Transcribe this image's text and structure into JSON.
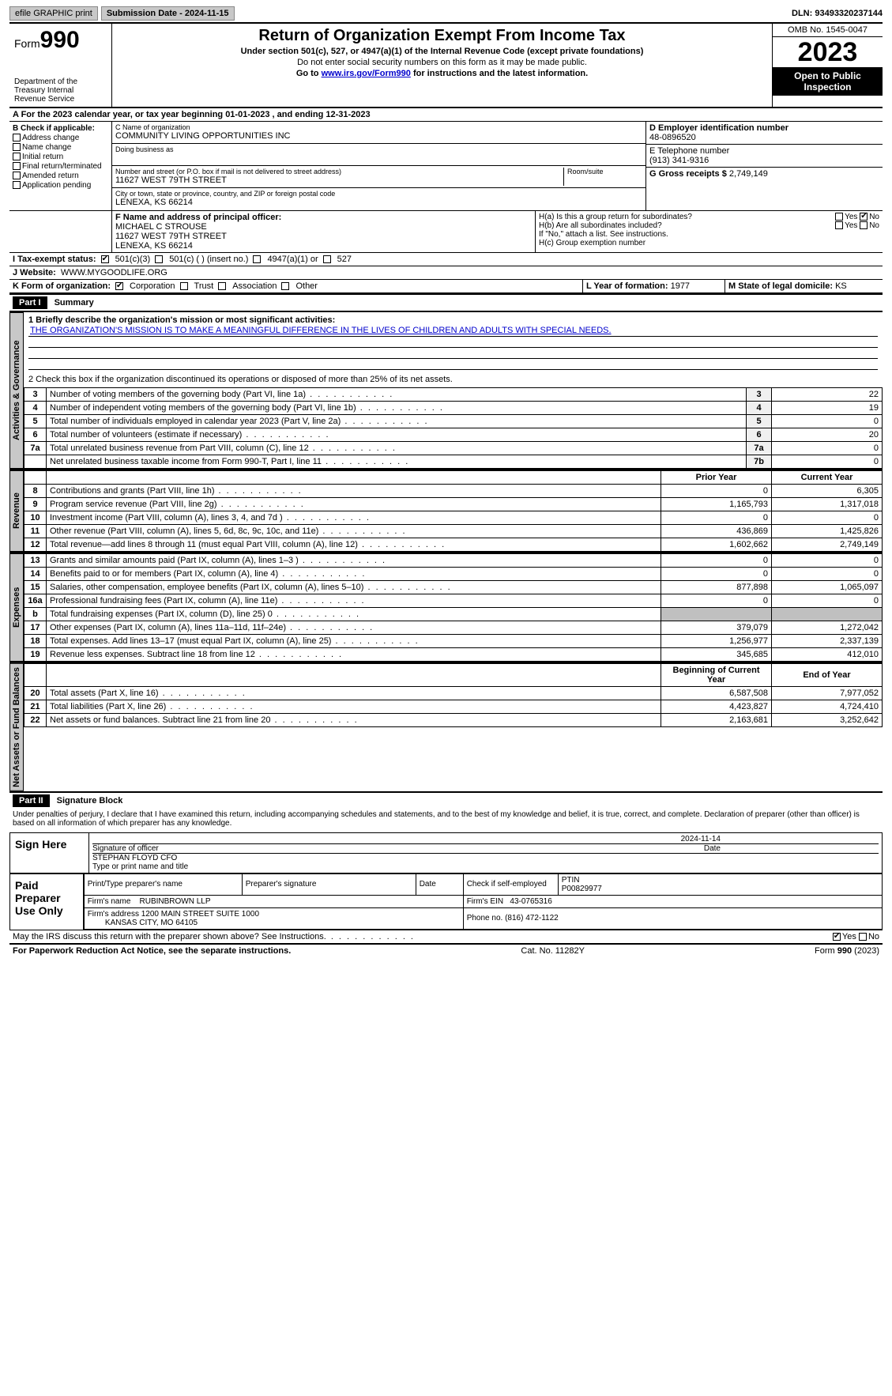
{
  "topbar": {
    "efile": "efile GRAPHIC print",
    "subdate_label": "Submission Date - 2024-11-15",
    "dln": "DLN: 93493320237144"
  },
  "header": {
    "form_prefix": "Form",
    "form_num": "990",
    "dept": "Department of the Treasury Internal Revenue Service",
    "title": "Return of Organization Exempt From Income Tax",
    "sub1": "Under section 501(c), 527, or 4947(a)(1) of the Internal Revenue Code (except private foundations)",
    "sub2": "Do not enter social security numbers on this form as it may be made public.",
    "sub3_pre": "Go to ",
    "sub3_link": "www.irs.gov/Form990",
    "sub3_post": " for instructions and the latest information.",
    "omb": "OMB No. 1545-0047",
    "year": "2023",
    "otp": "Open to Public Inspection"
  },
  "period": {
    "text": "A For the 2023 calendar year, or tax year beginning 01-01-2023   , and ending 12-31-2023"
  },
  "boxB": {
    "title": "B Check if applicable:",
    "items": [
      "Address change",
      "Name change",
      "Initial return",
      "Final return/terminated",
      "Amended return",
      "Application pending"
    ]
  },
  "boxC": {
    "name_label": "C Name of organization",
    "name": "COMMUNITY LIVING OPPORTUNITIES INC",
    "dba_label": "Doing business as",
    "dba": "",
    "street_label": "Number and street (or P.O. box if mail is not delivered to street address)",
    "street": "11627 WEST 79TH STREET",
    "room_label": "Room/suite",
    "city_label": "City or town, state or province, country, and ZIP or foreign postal code",
    "city": "LENEXA, KS  66214"
  },
  "boxD": {
    "label": "D Employer identification number",
    "value": "48-0896520"
  },
  "boxE": {
    "label": "E Telephone number",
    "value": "(913) 341-9316"
  },
  "boxG": {
    "label": "G Gross receipts $",
    "value": "2,749,149"
  },
  "boxF": {
    "label": "F  Name and address of principal officer:",
    "name": "MICHAEL C STROUSE",
    "addr1": "11627 WEST 79TH STREET",
    "addr2": "LENEXA, KS  66214"
  },
  "boxH": {
    "a": "H(a)  Is this a group return for subordinates?",
    "a_yes": "Yes",
    "a_no": "No",
    "b": "H(b)  Are all subordinates included?",
    "b_note": "If \"No,\" attach a list. See instructions.",
    "c": "H(c)  Group exemption number"
  },
  "boxI": {
    "label": "I  Tax-exempt status:",
    "opt1": "501(c)(3)",
    "opt2": "501(c) (   ) (insert no.)",
    "opt3": "4947(a)(1) or",
    "opt4": "527"
  },
  "boxJ": {
    "label": "J  Website:",
    "value": "WWW.MYGOODLIFE.ORG"
  },
  "boxK": {
    "label": "K Form of organization:",
    "opts": [
      "Corporation",
      "Trust",
      "Association",
      "Other"
    ]
  },
  "boxL": {
    "label": "L Year of formation:",
    "value": "1977"
  },
  "boxM": {
    "label": "M State of legal domicile:",
    "value": "KS"
  },
  "part1": {
    "hdr": "Part I",
    "title": "Summary",
    "line1_label": "1  Briefly describe the organization's mission or most significant activities:",
    "mission": "THE ORGANIZATION'S MISSION IS TO MAKE A MEANINGFUL DIFFERENCE IN THE LIVES OF CHILDREN AND ADULTS WITH SPECIAL NEEDS.",
    "line2": "2   Check this box      if the organization discontinued its operations or disposed of more than 25% of its net assets.",
    "governance_tab": "Activities & Governance",
    "revenue_tab": "Revenue",
    "expenses_tab": "Expenses",
    "netassets_tab": "Net Assets or Fund Balances",
    "rows_gov": [
      {
        "n": "3",
        "lbl": "Number of voting members of the governing body (Part VI, line 1a)",
        "k": "3",
        "v": "22"
      },
      {
        "n": "4",
        "lbl": "Number of independent voting members of the governing body (Part VI, line 1b)",
        "k": "4",
        "v": "19"
      },
      {
        "n": "5",
        "lbl": "Total number of individuals employed in calendar year 2023 (Part V, line 2a)",
        "k": "5",
        "v": "0"
      },
      {
        "n": "6",
        "lbl": "Total number of volunteers (estimate if necessary)",
        "k": "6",
        "v": "20"
      },
      {
        "n": "7a",
        "lbl": "Total unrelated business revenue from Part VIII, column (C), line 12",
        "k": "7a",
        "v": "0"
      },
      {
        "n": "",
        "lbl": "Net unrelated business taxable income from Form 990-T, Part I, line 11",
        "k": "7b",
        "v": "0"
      }
    ],
    "col_prior": "Prior Year",
    "col_current": "Current Year",
    "rows_rev": [
      {
        "n": "8",
        "lbl": "Contributions and grants (Part VIII, line 1h)",
        "p": "0",
        "c": "6,305"
      },
      {
        "n": "9",
        "lbl": "Program service revenue (Part VIII, line 2g)",
        "p": "1,165,793",
        "c": "1,317,018"
      },
      {
        "n": "10",
        "lbl": "Investment income (Part VIII, column (A), lines 3, 4, and 7d )",
        "p": "0",
        "c": "0"
      },
      {
        "n": "11",
        "lbl": "Other revenue (Part VIII, column (A), lines 5, 6d, 8c, 9c, 10c, and 11e)",
        "p": "436,869",
        "c": "1,425,826"
      },
      {
        "n": "12",
        "lbl": "Total revenue—add lines 8 through 11 (must equal Part VIII, column (A), line 12)",
        "p": "1,602,662",
        "c": "2,749,149"
      }
    ],
    "rows_exp": [
      {
        "n": "13",
        "lbl": "Grants and similar amounts paid (Part IX, column (A), lines 1–3 )",
        "p": "0",
        "c": "0"
      },
      {
        "n": "14",
        "lbl": "Benefits paid to or for members (Part IX, column (A), line 4)",
        "p": "0",
        "c": "0"
      },
      {
        "n": "15",
        "lbl": "Salaries, other compensation, employee benefits (Part IX, column (A), lines 5–10)",
        "p": "877,898",
        "c": "1,065,097"
      },
      {
        "n": "16a",
        "lbl": "Professional fundraising fees (Part IX, column (A), line 11e)",
        "p": "0",
        "c": "0"
      },
      {
        "n": "b",
        "lbl": "Total fundraising expenses (Part IX, column (D), line 25) 0",
        "p": "",
        "c": "",
        "shade": true
      },
      {
        "n": "17",
        "lbl": "Other expenses (Part IX, column (A), lines 11a–11d, 11f–24e)",
        "p": "379,079",
        "c": "1,272,042"
      },
      {
        "n": "18",
        "lbl": "Total expenses. Add lines 13–17 (must equal Part IX, column (A), line 25)",
        "p": "1,256,977",
        "c": "2,337,139"
      },
      {
        "n": "19",
        "lbl": "Revenue less expenses. Subtract line 18 from line 12",
        "p": "345,685",
        "c": "412,010"
      }
    ],
    "col_begin": "Beginning of Current Year",
    "col_end": "End of Year",
    "rows_net": [
      {
        "n": "20",
        "lbl": "Total assets (Part X, line 16)",
        "p": "6,587,508",
        "c": "7,977,052"
      },
      {
        "n": "21",
        "lbl": "Total liabilities (Part X, line 26)",
        "p": "4,423,827",
        "c": "4,724,410"
      },
      {
        "n": "22",
        "lbl": "Net assets or fund balances. Subtract line 21 from line 20",
        "p": "2,163,681",
        "c": "3,252,642"
      }
    ]
  },
  "part2": {
    "hdr": "Part II",
    "title": "Signature Block",
    "decl": "Under penalties of perjury, I declare that I have examined this return, including accompanying schedules and statements, and to the best of my knowledge and belief, it is true, correct, and complete. Declaration of preparer (other than officer) is based on all information of which preparer has any knowledge.",
    "sign_here": "Sign Here",
    "sig_date": "2024-11-14",
    "sig_label": "Signature of officer",
    "officer": "STEPHAN FLOYD CFO",
    "type_label": "Type or print name and title",
    "date_label": "Date",
    "paid": "Paid Preparer Use Only",
    "prep_name_label": "Print/Type preparer's name",
    "prep_sig_label": "Preparer's signature",
    "prep_date_label": "Date",
    "prep_self": "Check        if self-employed",
    "ptin_label": "PTIN",
    "ptin": "P00829977",
    "firm_name_label": "Firm's name",
    "firm_name": "RUBINBROWN LLP",
    "firm_ein_label": "Firm's EIN",
    "firm_ein": "43-0765316",
    "firm_addr_label": "Firm's address",
    "firm_addr1": "1200 MAIN STREET SUITE 1000",
    "firm_addr2": "KANSAS CITY, MO  64105",
    "phone_label": "Phone no.",
    "phone": "(816) 472-1122",
    "discuss": "May the IRS discuss this return with the preparer shown above? See Instructions.",
    "yes": "Yes",
    "no": "No"
  },
  "footer": {
    "pra": "For Paperwork Reduction Act Notice, see the separate instructions.",
    "cat": "Cat. No. 11282Y",
    "form": "Form 990 (2023)"
  }
}
